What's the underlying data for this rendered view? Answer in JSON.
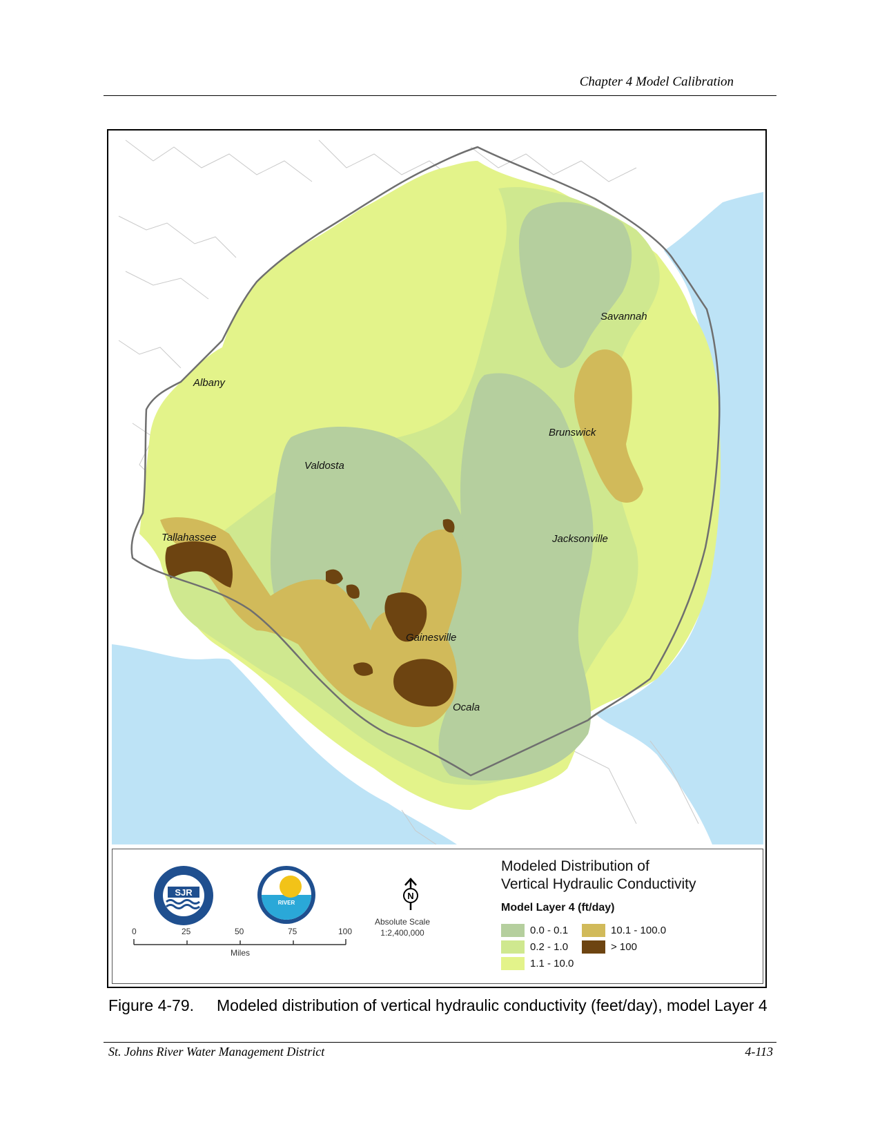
{
  "header": {
    "title": "Chapter 4 Model Calibration"
  },
  "map": {
    "cities": [
      {
        "name": "Savannah"
      },
      {
        "name": "Albany"
      },
      {
        "name": "Brunswick"
      },
      {
        "name": "Valdosta"
      },
      {
        "name": "Tallahassee"
      },
      {
        "name": "Jacksonville"
      },
      {
        "name": "Gainesville"
      },
      {
        "name": "Ocala"
      }
    ],
    "colors": {
      "water": "#bde3f6",
      "land": "#ffffff",
      "class_0_0_1": "#b5cf9e",
      "class_0_2_1": "#cfe88f",
      "class_1_10": "#e3f38a",
      "class_10_100": "#d1ba5a",
      "class_gt_100": "#6d4411"
    }
  },
  "legend": {
    "title_line1": "Modeled Distribution of",
    "title_line2": "Vertical Hydraulic Conductivity",
    "subtitle": "Model Layer 4 (ft/day)",
    "items": [
      {
        "label": "0.0 - 0.1",
        "color": "#b5cf9e"
      },
      {
        "label": "0.2 - 1.0",
        "color": "#cfe88f"
      },
      {
        "label": "1.1 - 10.0",
        "color": "#e3f38a"
      },
      {
        "label": "10.1 - 100.0",
        "color": "#d1ba5a"
      },
      {
        "label": "> 100",
        "color": "#6d4411"
      }
    ],
    "scale_ticks": [
      "0",
      "25",
      "50",
      "75",
      "100"
    ],
    "scale_unit": "Miles",
    "absolute_scale_label": "Absolute Scale",
    "absolute_scale_value": "1:2,400,000",
    "logo1_text": "SJR",
    "logo2_text": "RIVER",
    "north_letter": "N"
  },
  "caption": {
    "number": "Figure 4-79.",
    "text": "Modeled distribution of vertical hydraulic conductivity (feet/day), model Layer 4"
  },
  "footer": {
    "left": "St. Johns River Water Management District",
    "right": "4-113"
  }
}
